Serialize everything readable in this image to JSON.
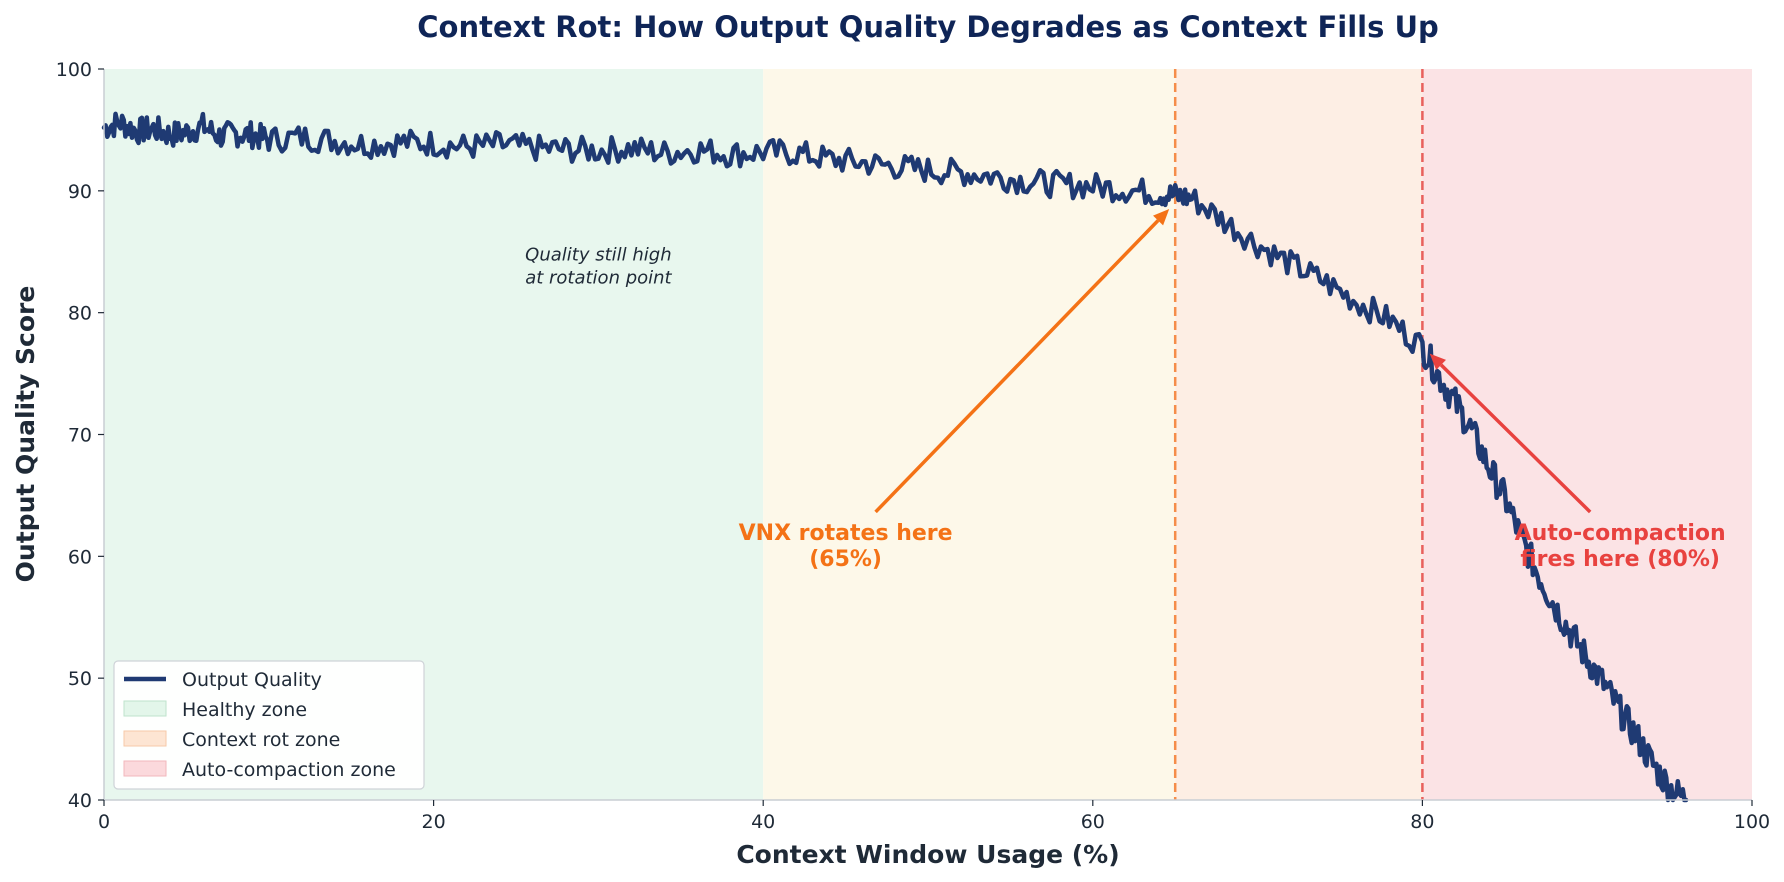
{
  "chart_data": {
    "type": "line",
    "title": "Context Rot: How Output Quality Degrades as Context Fills Up",
    "xlabel": "Context Window Usage (%)",
    "ylabel": "Output Quality Score",
    "xlim": [
      0,
      100
    ],
    "ylim": [
      40,
      100
    ],
    "x_ticks": [
      "0",
      "20",
      "40",
      "60",
      "80",
      "100"
    ],
    "y_ticks": [
      "40",
      "50",
      "60",
      "70",
      "80",
      "90",
      "100"
    ],
    "grid": false,
    "legend_position": "lower-left",
    "series": [
      {
        "name": "Output Quality",
        "color": "#1f3a73",
        "x": [
          0,
          1,
          2,
          3,
          4,
          5,
          6,
          7,
          8,
          9,
          10,
          12,
          14,
          16,
          18,
          20,
          22,
          24,
          26,
          28,
          30,
          32,
          34,
          36,
          38,
          40,
          42,
          44,
          46,
          48,
          50,
          52,
          54,
          56,
          58,
          60,
          62,
          64,
          65,
          66,
          68,
          70,
          72,
          74,
          76,
          78,
          80,
          81,
          82,
          83,
          84,
          85,
          86,
          87,
          88,
          89,
          90,
          91,
          92,
          93,
          94,
          95,
          96
        ],
        "y": [
          95.2,
          95.6,
          94.9,
          95.1,
          94.6,
          94.8,
          95.3,
          94.5,
          94.7,
          94.6,
          94.2,
          94.4,
          94.1,
          93.8,
          94.0,
          93.9,
          93.6,
          93.8,
          93.5,
          93.4,
          93.3,
          93.5,
          93.1,
          93.4,
          93.0,
          93.2,
          93.1,
          92.6,
          92.3,
          92.0,
          91.7,
          91.5,
          91.2,
          90.8,
          90.5,
          90.4,
          90.1,
          89.8,
          89.6,
          89.4,
          87.5,
          85.6,
          84.0,
          82.6,
          80.9,
          79.4,
          77.2,
          74.8,
          72.6,
          70.3,
          67.4,
          64.8,
          61.5,
          58.6,
          56.0,
          53.7,
          51.6,
          49.5,
          47.3,
          45.2,
          42.9,
          41.0,
          40.0
        ]
      }
    ],
    "zones": [
      {
        "name": "Healthy zone",
        "from": 0,
        "to": 40,
        "color": "#e8f7ee"
      },
      {
        "name": "",
        "from": 40,
        "to": 65,
        "color": "#fdf8e9"
      },
      {
        "name": "Context rot zone",
        "from": 65,
        "to": 80,
        "color": "#fdeee4"
      },
      {
        "name": "Auto-compaction zone",
        "from": 80,
        "to": 100,
        "color": "#fbe3e5"
      }
    ],
    "legend_swatches": {
      "healthy": "#e3f6ea",
      "rot": "#fde5d3",
      "compaction": "#fbd9dc"
    },
    "vlines": [
      {
        "x": 65,
        "color": "#f58d4a"
      },
      {
        "x": 80,
        "color": "#e8605c"
      }
    ],
    "annotations": {
      "note_line1": "Quality still high",
      "note_line2": "at rotation point",
      "vnx_line1": "VNX rotates here",
      "vnx_line2": "(65%)",
      "vnx_color": "#f47216",
      "vnx_text_x": 45,
      "vnx_text_y": 62,
      "vnx_arrow_to": [
        65,
        89
      ],
      "auto_line1": "Auto-compaction",
      "auto_line2": "fires here (80%)",
      "auto_color": "#e8423f",
      "auto_text_x": 92,
      "auto_text_y": 62,
      "auto_arrow_to": [
        80.2,
        76.8
      ]
    }
  }
}
